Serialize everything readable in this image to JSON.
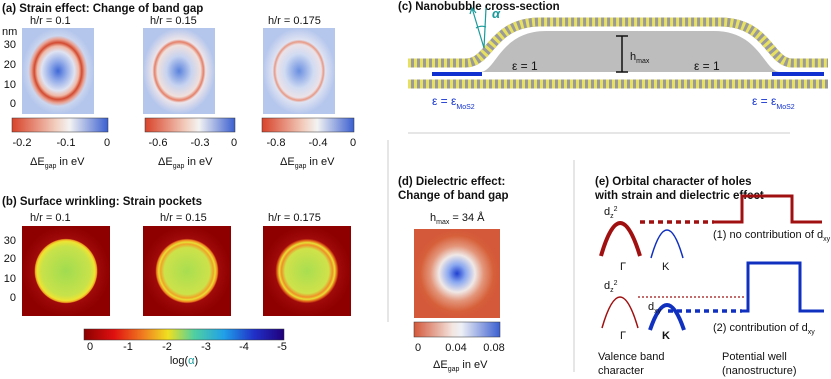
{
  "panel_a": {
    "title": "(a) Strain effect: Change of band gap",
    "y_axis": {
      "unit": "nm",
      "ticks": [
        "30",
        "20",
        "10",
        "0"
      ]
    },
    "maps": [
      {
        "label": "h/r = 0.1",
        "colorbar_ticks": [
          "-0.2",
          "-0.1",
          "0"
        ]
      },
      {
        "label": "h/r = 0.15",
        "colorbar_ticks": [
          "-0.6",
          "-0.3",
          "0"
        ]
      },
      {
        "label": "h/r = 0.175",
        "colorbar_ticks": [
          "-0.8",
          "-0.4",
          "0"
        ]
      }
    ],
    "colorbar_label": {
      "main": "ΔE",
      "sub": "gap",
      "unit": " in eV"
    }
  },
  "panel_b": {
    "title": "(b) Surface wrinkling: Strain pockets",
    "labels": [
      "h/r = 0.1",
      "h/r = 0.15",
      "h/r = 0.175"
    ],
    "y_axis": {
      "ticks": [
        "30",
        "20",
        "10",
        "0"
      ]
    },
    "colorbar": {
      "ticks": [
        "0",
        "-1",
        "-2",
        "-3",
        "-4",
        "-5"
      ],
      "label_prefix": "log(",
      "symbol": "α",
      "label_suffix": ")"
    }
  },
  "panel_c": {
    "title": "(c) Nanobubble cross-section",
    "alpha": "α",
    "eps_inner": [
      "ε = 1",
      "ε = 1"
    ],
    "hmax": {
      "main": "h",
      "sub": "max"
    },
    "eps_outer": [
      {
        "main": "ε = ε",
        "sub": "MoS2"
      },
      {
        "main": "ε = ε",
        "sub": "MoS2"
      }
    ]
  },
  "panel_d": {
    "title": [
      "(d) Dielectric effect:",
      "Change of band gap"
    ],
    "hmax": {
      "main": "h",
      "sub": "max",
      "value": " = 34 Å"
    },
    "colorbar_ticks": [
      "0",
      "0.04",
      "0.08"
    ],
    "colorbar_label": {
      "main": "ΔE",
      "sub": "gap",
      "unit": " in eV"
    }
  },
  "panel_e": {
    "title": [
      "(e) Orbital character of holes",
      "with strain and dielectric effect"
    ],
    "orbital_dz2": [
      {
        "main": "d",
        "sub": "z",
        "sup": "2"
      },
      {
        "main": "d",
        "sub": "z",
        "sup": "2"
      }
    ],
    "orbital_dxy": {
      "main": "d",
      "sub": "xy"
    },
    "gamma": [
      "Γ",
      "Γ"
    ],
    "k": [
      "K",
      "K"
    ],
    "case1": {
      "main": "(1) no contribution of d",
      "sub": "xy"
    },
    "case2": {
      "main": "(2) contribution of d",
      "sub": "xy"
    },
    "valence": [
      "Valence band",
      "character"
    ],
    "well": [
      "Potential well",
      "(nanostructure)"
    ]
  }
}
